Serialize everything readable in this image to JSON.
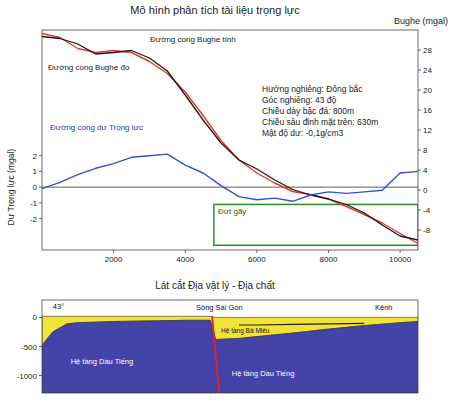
{
  "chart_data": [
    {
      "type": "line",
      "title": "Mô hình phân tích tài liệu trọng lực",
      "y_label": "Dư Trọng lực (mgal)",
      "y2_label": "Bughe (mgal)",
      "x": [
        0,
        500,
        1000,
        1500,
        2000,
        2500,
        3000,
        3500,
        4000,
        4500,
        5000,
        5500,
        6000,
        6500,
        7000,
        7500,
        8000,
        8500,
        9000,
        9500,
        10000,
        10500
      ],
      "series": [
        {
          "name": "Đường cong Bughe đo",
          "color": "#e0392b",
          "axis": "y2",
          "values": [
            31.3,
            30.5,
            28.3,
            27.5,
            27.9,
            27.5,
            25.7,
            23.3,
            19.6,
            14.9,
            9.9,
            6,
            3.4,
            1.4,
            -0.3,
            -0.9,
            -1.8,
            -3.3,
            -4.9,
            -6.6,
            -8.7,
            -10.7
          ]
        },
        {
          "name": "Đường cong Bughe tính",
          "color": "#1a1a1a",
          "axis": "y2",
          "values": [
            30.7,
            30.3,
            29.2,
            27.2,
            27.5,
            27.9,
            26.4,
            23.8,
            19.0,
            14.0,
            9.4,
            6,
            4.2,
            2.0,
            0.1,
            -1.0,
            -1.8,
            -2.9,
            -4.6,
            -7.0,
            -9.2,
            -10.0
          ]
        },
        {
          "name": "Đường cong dư Trọng lực",
          "color": "#3a4fd8",
          "values": [
            -0.1,
            0.3,
            0.8,
            1.2,
            1.5,
            1.9,
            2.0,
            2.1,
            1.4,
            0.9,
            0.1,
            -0.6,
            -0.8,
            -0.7,
            -0.9,
            -0.5,
            -0.3,
            -0.4,
            -0.3,
            -0.2,
            0.9,
            1.0
          ]
        }
      ],
      "xlim": [
        0,
        10500
      ],
      "xticks": [
        2000,
        4000,
        6000,
        8000,
        10000
      ],
      "ylim": [
        -4,
        10
      ],
      "yticks": [
        -2,
        -1,
        0,
        1,
        2
      ],
      "y2lim": [
        -12,
        32
      ],
      "y2ticks": [
        -8,
        -4,
        0,
        4,
        8,
        12,
        16,
        20,
        24,
        28
      ],
      "annotations": [
        "Hướng nghiêng: Đông bắc",
        "Góc nghiêng: 43 độ",
        "Chiều dày bậc đá: 800m",
        "Chiều sâu đỉnh mặt trên: 630m",
        "Mật độ dư: -0,1g/cm3"
      ],
      "highlight": {
        "label": "Đứt gãy",
        "color": "#2e8b2e",
        "x": [
          4800,
          10500
        ],
        "y": [
          -3.7,
          -1.1
        ]
      }
    },
    {
      "type": "area",
      "title": "Lát cắt Địa vật lý - Địa chất",
      "x": [
        0,
        300,
        700,
        1000,
        2000,
        3000,
        4000,
        4700,
        4850,
        5500,
        6000,
        7000,
        8000,
        9000,
        10000,
        10500
      ],
      "series": [
        {
          "color": "#f2e33a",
          "values": [
            20,
            20,
            20,
            20,
            20,
            20,
            20,
            20,
            0,
            0,
            0,
            0,
            0,
            0,
            0,
            0
          ]
        },
        {
          "color": "#4343a8",
          "values": [
            -480,
            -250,
            -110,
            -90,
            -70,
            -60,
            -50,
            -50,
            -380,
            -360,
            -330,
            -270,
            -200,
            -140,
            -90,
            -70
          ]
        },
        {
          "type": "line",
          "color": "#222222",
          "values": [
            null,
            null,
            null,
            null,
            null,
            null,
            null,
            null,
            null,
            -130,
            -130,
            -120,
            -110,
            -100,
            null,
            null
          ]
        }
      ],
      "xlim": [
        0,
        10500
      ],
      "ylim": [
        -1300,
        300
      ],
      "yticks": [
        -1000,
        -500,
        0
      ],
      "tick_labels": "y",
      "fault": {
        "color": "#e8202a",
        "x": [
          4750,
          4950
        ],
        "y": [
          20,
          -1300
        ]
      },
      "annotations": [
        {
          "text": "43°",
          "x": 300,
          "y": 150,
          "color": "#111111"
        },
        {
          "text": "Sông Sài Gòn",
          "x": 4300,
          "y": 120,
          "color": "#111111"
        },
        {
          "text": "Kênh",
          "x": 9300,
          "y": 120,
          "color": "#111111"
        },
        {
          "text": "Hệ tầng Bà Miêu",
          "x": 5000,
          "y": -260,
          "color": "#111111"
        },
        {
          "text": "Hệ tầng Dầu Tiếng",
          "x": 800,
          "y": -800,
          "color": "#ffffff"
        },
        {
          "text": "Hệ tầng Dầu Tiếng",
          "x": 5300,
          "y": -1000,
          "color": "#ffffff"
        }
      ]
    }
  ]
}
